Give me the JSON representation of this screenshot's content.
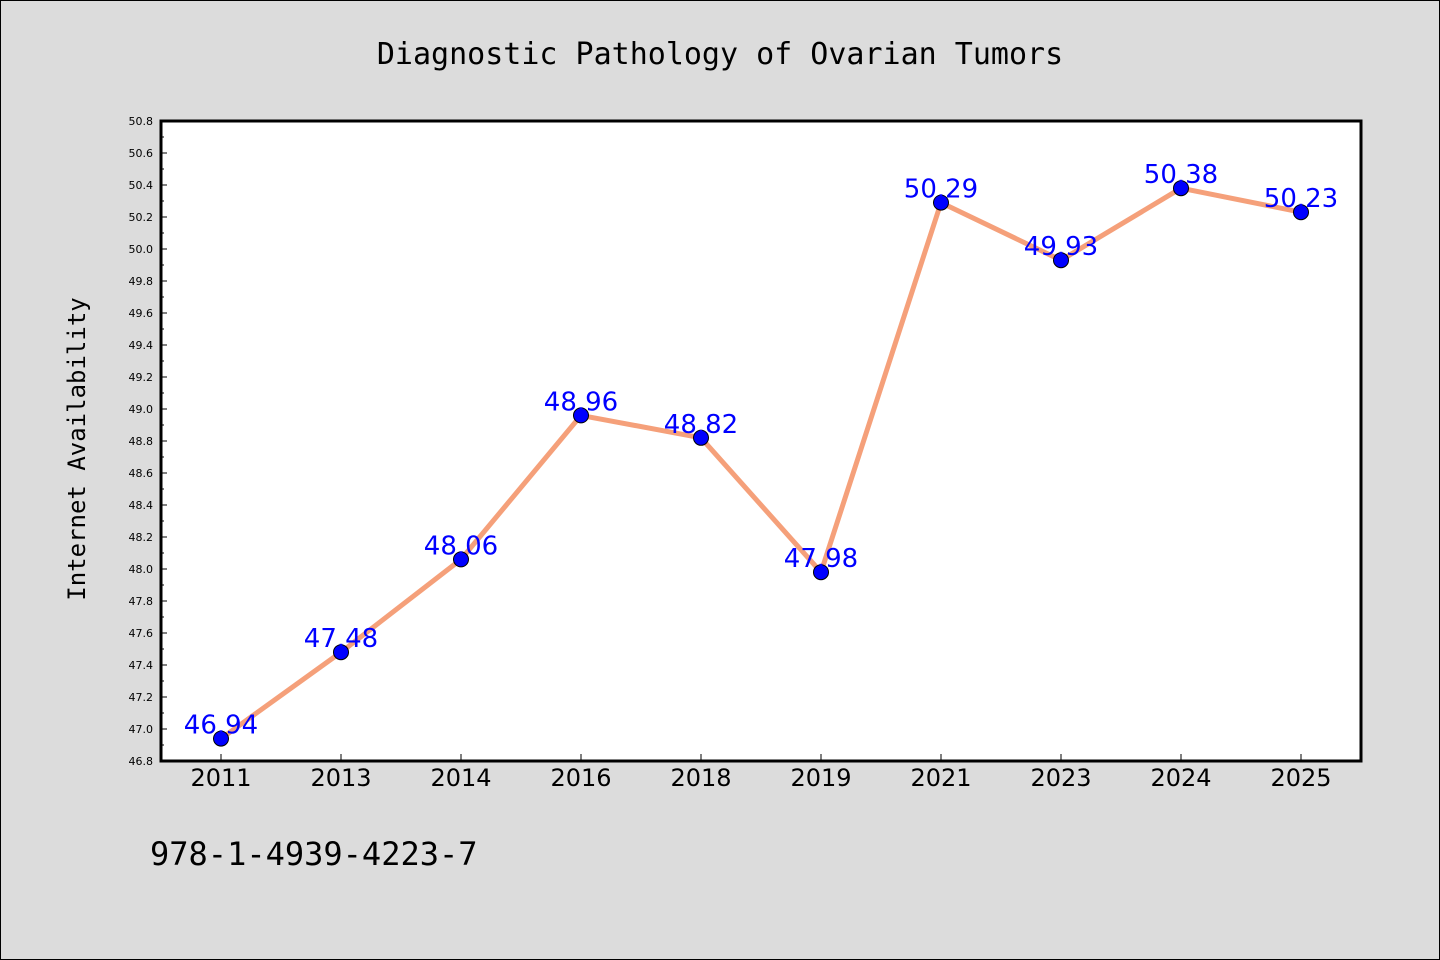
{
  "chart_data": {
    "type": "line",
    "title": "Diagnostic Pathology of Ovarian Tumors",
    "xlabel": "",
    "ylabel": "Internet Availability",
    "categories": [
      "2011",
      "2013",
      "2014",
      "2016",
      "2018",
      "2019",
      "2021",
      "2023",
      "2024",
      "2025"
    ],
    "series": [
      {
        "values": [
          46.94,
          47.48,
          48.06,
          48.96,
          48.82,
          47.98,
          50.29,
          49.93,
          50.38,
          50.23
        ],
        "line_color": "#f5a07a",
        "marker_color": "#0000ff"
      }
    ],
    "data_labels": [
      "46.94",
      "47.48",
      "48.06",
      "48.96",
      "48.82",
      "47.98",
      "50.29",
      "49.93",
      "50.38",
      "50.23"
    ],
    "ylim": [
      46.8,
      50.8
    ],
    "yticks": [
      "46.8",
      "47.0",
      "47.2",
      "47.4",
      "47.6",
      "47.8",
      "48.0",
      "48.2",
      "48.4",
      "48.6",
      "48.8",
      "49.0",
      "49.2",
      "49.4",
      "49.6",
      "49.8",
      "50.0",
      "50.2",
      "50.4",
      "50.6",
      "50.8"
    ],
    "grid": false,
    "label_color": "#0000ff",
    "background": "#dcdcdc",
    "plot_background": "#ffffff"
  },
  "footnote": "978-1-4939-4223-7"
}
